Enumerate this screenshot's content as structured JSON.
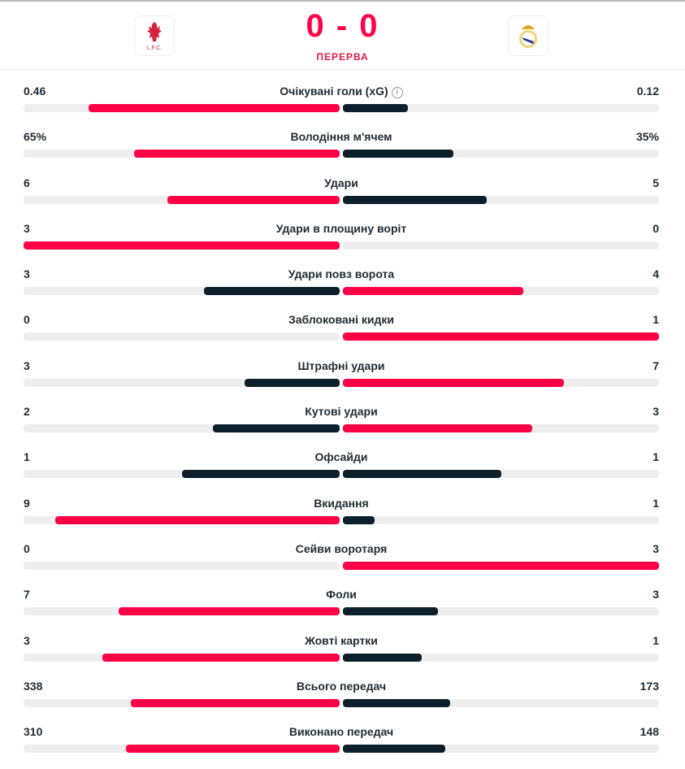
{
  "header": {
    "home_team": "L.F.C.",
    "score": "0 - 0",
    "status": "ПЕРЕРВА",
    "home_logo_icon": "liverpool-crest-icon",
    "away_logo_icon": "real-madrid-crest-icon"
  },
  "colors": {
    "leader": "#ff0046",
    "other": "#0d1f2a",
    "track": "#eeeeee"
  },
  "stats": [
    {
      "label": "Очікувані голи (xG)",
      "home": "0.46",
      "away": "0.12",
      "hv": 0.46,
      "av": 0.12,
      "info": "i"
    },
    {
      "label": "Володіння м'ячем",
      "home": "65%",
      "away": "35%",
      "hv": 65,
      "av": 35
    },
    {
      "label": "Удари",
      "home": "6",
      "away": "5",
      "hv": 6,
      "av": 5
    },
    {
      "label": "Удари в площину воріт",
      "home": "3",
      "away": "0",
      "hv": 3,
      "av": 0
    },
    {
      "label": "Удари повз ворота",
      "home": "3",
      "away": "4",
      "hv": 3,
      "av": 4
    },
    {
      "label": "Заблоковані кидки",
      "home": "0",
      "away": "1",
      "hv": 0,
      "av": 1
    },
    {
      "label": "Штрафні удари",
      "home": "3",
      "away": "7",
      "hv": 3,
      "av": 7
    },
    {
      "label": "Кутові удари",
      "home": "2",
      "away": "3",
      "hv": 2,
      "av": 3
    },
    {
      "label": "Офсайди",
      "home": "1",
      "away": "1",
      "hv": 1,
      "av": 1
    },
    {
      "label": "Вкидання",
      "home": "9",
      "away": "1",
      "hv": 9,
      "av": 1
    },
    {
      "label": "Сейви воротаря",
      "home": "0",
      "away": "3",
      "hv": 0,
      "av": 3
    },
    {
      "label": "Фоли",
      "home": "7",
      "away": "3",
      "hv": 7,
      "av": 3
    },
    {
      "label": "Жовті картки",
      "home": "3",
      "away": "1",
      "hv": 3,
      "av": 1
    },
    {
      "label": "Всього передач",
      "home": "338",
      "away": "173",
      "hv": 338,
      "av": 173
    },
    {
      "label": "Виконано передач",
      "home": "310",
      "away": "148",
      "hv": 310,
      "av": 148
    }
  ]
}
